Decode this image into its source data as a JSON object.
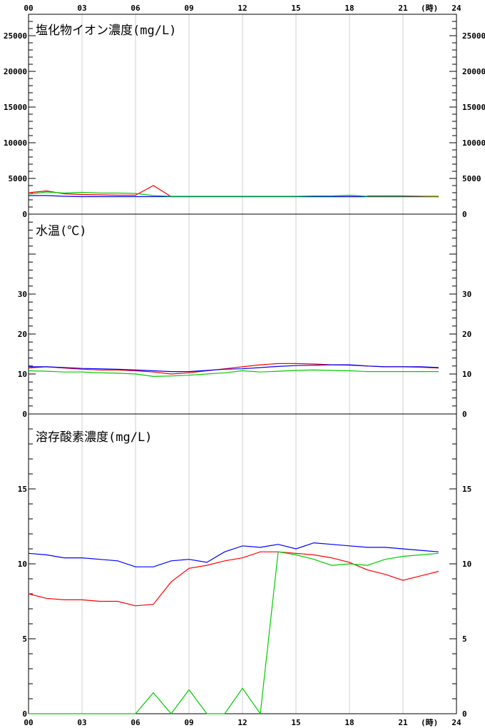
{
  "x_axis": {
    "ticks": [
      "00",
      "03",
      "06",
      "09",
      "12",
      "15",
      "18",
      "21",
      "24"
    ],
    "unit_label": "(時)"
  },
  "series_colors": [
    "#ff0000",
    "#0000ff",
    "#00cc00",
    "#8b5a00"
  ],
  "chart_data": [
    {
      "id": "chloride",
      "type": "line",
      "title": "塩化物イオン濃度(mg/L)",
      "ylim": [
        0,
        28000
      ],
      "yticks_left": [
        "25000",
        "20000",
        "15000",
        "10000",
        "5000",
        "0"
      ],
      "yticks_right": [
        "25000",
        "20000",
        "15000",
        "10000",
        "5000",
        "0"
      ],
      "ytick_values": [
        25000,
        20000,
        15000,
        10000,
        5000,
        0
      ],
      "x": [
        0,
        1,
        2,
        3,
        4,
        5,
        6,
        7,
        8,
        9,
        10,
        11,
        12,
        13,
        14,
        15,
        16,
        17,
        18,
        19,
        20,
        21,
        22,
        23
      ],
      "series": [
        {
          "color": "#ff0000",
          "values": [
            3000,
            3250,
            2850,
            2750,
            2700,
            2650,
            2650,
            4000,
            2450,
            2450,
            2450,
            2450,
            2450,
            2450,
            2450,
            2450,
            2450,
            2450,
            2450,
            2450,
            2450,
            2450,
            2450,
            2450
          ]
        },
        {
          "color": "#0000ff",
          "values": [
            2600,
            2600,
            2500,
            2450,
            2450,
            2450,
            2450,
            2450,
            2450,
            2450,
            2450,
            2450,
            2450,
            2450,
            2450,
            2450,
            2450,
            2450,
            2450,
            2450,
            2450,
            2450,
            2450,
            2450
          ]
        },
        {
          "color": "#00cc00",
          "values": [
            2800,
            3100,
            2950,
            3050,
            2950,
            2950,
            2900,
            2600,
            2500,
            2500,
            2500,
            2500,
            2500,
            2500,
            2500,
            2500,
            2550,
            2550,
            2650,
            2500,
            2500,
            2500,
            2500,
            2450
          ]
        },
        {
          "color": "#8b5a00",
          "values": [
            null,
            null,
            null,
            null,
            null,
            null,
            null,
            null,
            null,
            null,
            null,
            null,
            null,
            null,
            null,
            null,
            null,
            null,
            null,
            2550,
            2550,
            2550,
            2500,
            2500
          ]
        }
      ]
    },
    {
      "id": "water_temp",
      "type": "line",
      "title": "水温(℃)",
      "ylim": [
        0,
        50
      ],
      "yticks_left": [
        "30",
        "20",
        "10",
        "0"
      ],
      "yticks_right": [
        "30",
        "20",
        "10",
        "0"
      ],
      "ytick_values": [
        30,
        20,
        10,
        0
      ],
      "x": [
        0,
        1,
        2,
        3,
        4,
        5,
        6,
        7,
        8,
        9,
        10,
        11,
        12,
        13,
        14,
        15,
        16,
        17,
        18,
        19,
        20,
        21,
        22,
        23
      ],
      "series": [
        {
          "color": "#ff0000",
          "values": [
            11.5,
            11.8,
            11.5,
            11.2,
            11.0,
            11.0,
            10.8,
            10.5,
            10.0,
            10.3,
            10.8,
            11.3,
            11.8,
            12.3,
            12.6,
            12.6,
            12.5,
            12.3,
            12.2,
            12.0,
            11.8,
            11.8,
            11.7,
            11.5
          ]
        },
        {
          "color": "#0000ff",
          "values": [
            11.8,
            11.8,
            11.6,
            11.4,
            11.3,
            11.2,
            11.0,
            10.8,
            10.6,
            10.6,
            10.9,
            11.2,
            11.3,
            11.6,
            11.9,
            12.1,
            12.2,
            12.3,
            12.3,
            12.0,
            11.8,
            11.8,
            11.8,
            11.6
          ]
        },
        {
          "color": "#00cc00",
          "values": [
            10.8,
            10.7,
            10.5,
            10.5,
            10.3,
            10.2,
            10.0,
            9.4,
            9.5,
            9.7,
            10.0,
            10.3,
            10.8,
            10.5,
            10.7,
            10.9,
            11.0,
            10.9,
            10.8,
            10.6,
            10.6,
            10.6,
            10.6,
            10.6
          ]
        }
      ]
    },
    {
      "id": "dissolved_oxygen",
      "type": "line",
      "title": "溶存酸素濃度(mg/L)",
      "ylim": [
        0,
        20
      ],
      "yticks_left": [
        "15",
        "10",
        "5",
        "0"
      ],
      "yticks_right": [
        "15",
        "10",
        "5",
        "0"
      ],
      "ytick_values": [
        15,
        10,
        5,
        0
      ],
      "x": [
        0,
        1,
        2,
        3,
        4,
        5,
        6,
        7,
        8,
        9,
        10,
        11,
        12,
        13,
        14,
        15,
        16,
        17,
        18,
        19,
        20,
        21,
        22,
        23
      ],
      "series": [
        {
          "color": "#ff0000",
          "values": [
            8.0,
            7.7,
            7.6,
            7.6,
            7.5,
            7.5,
            7.2,
            7.3,
            8.8,
            9.7,
            9.9,
            10.2,
            10.4,
            10.8,
            10.8,
            10.7,
            10.6,
            10.4,
            10.1,
            9.6,
            9.3,
            8.9,
            9.2,
            9.5
          ]
        },
        {
          "color": "#0000ff",
          "values": [
            10.7,
            10.6,
            10.4,
            10.4,
            10.3,
            10.2,
            9.8,
            9.8,
            10.2,
            10.3,
            10.1,
            10.8,
            11.2,
            11.1,
            11.3,
            11.0,
            11.4,
            11.3,
            11.2,
            11.1,
            11.1,
            11.0,
            10.9,
            10.8
          ]
        },
        {
          "color": "#00cc00",
          "values": [
            0,
            0,
            0,
            0,
            0,
            0,
            0,
            1.4,
            0,
            1.6,
            0,
            0,
            1.7,
            0,
            10.8,
            10.6,
            10.3,
            9.9,
            10.0,
            9.9,
            10.3,
            10.5,
            10.6,
            10.7
          ]
        }
      ]
    }
  ]
}
